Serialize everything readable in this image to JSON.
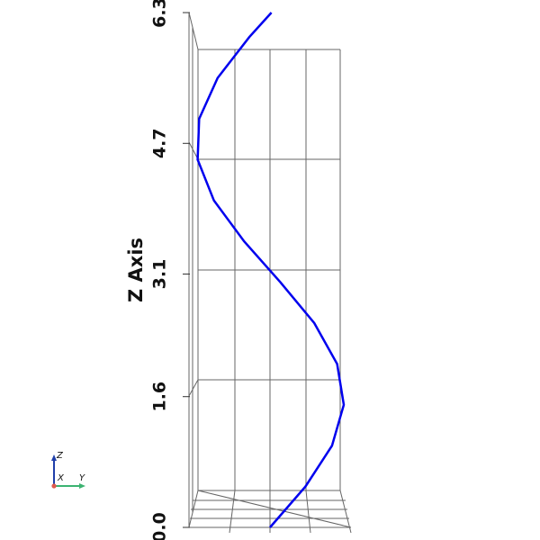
{
  "colors": {
    "background": "#ffffff",
    "curve": "#0000ee",
    "grid": "#666666",
    "axis_x": "#e05a4f",
    "axis_y": "#3cb371",
    "axis_z": "#1f3faa"
  },
  "chart_data": {
    "type": "line",
    "title": "",
    "zlabel": "Z Axis",
    "z_ticks": [
      "0.0",
      "1.6",
      "3.1",
      "4.7",
      "6.3"
    ],
    "zlim": [
      0.0,
      6.3
    ],
    "grid": true,
    "series": [
      {
        "x": [
          0,
          0.5,
          1.0,
          1.5,
          2.0,
          2.5,
          3.0,
          3.5,
          4.0,
          4.5,
          5.0,
          5.5,
          6.0,
          6.3
        ],
        "y": [
          0.0,
          0.48,
          0.84,
          1.0,
          0.91,
          0.6,
          0.14,
          -0.35,
          -0.76,
          -0.98,
          -0.96,
          -0.71,
          -0.28,
          0.02
        ],
        "z": [
          0,
          0.5,
          1.0,
          1.5,
          2.0,
          2.5,
          3.0,
          3.5,
          4.0,
          4.5,
          5.0,
          5.5,
          6.0,
          6.3
        ]
      }
    ]
  },
  "orientation_triad": {
    "x_label": "X",
    "y_label": "Y",
    "z_label": "Z",
    "icon": "axes-triad-icon"
  }
}
